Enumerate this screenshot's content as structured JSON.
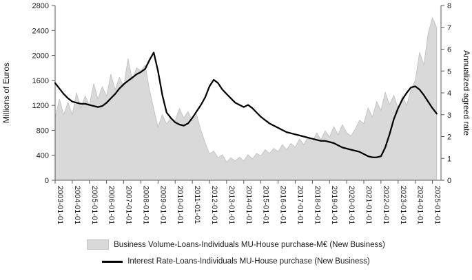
{
  "chart_data": {
    "type": "combo",
    "subtypes": [
      "area",
      "line"
    ],
    "title": "",
    "ylabel_left": "Millions of Euros",
    "ylabel_right": "Annualized agreed rate",
    "legend_position": "bottom",
    "grid": false,
    "x_axis": {
      "start": 2003,
      "step": 0.25,
      "min": 2003,
      "max": 2025.5,
      "tick_labels": [
        "2003-01-01",
        "2004-01-01",
        "2005-01-01",
        "2006-01-01",
        "2007-01-01",
        "2008-01-01",
        "2009-01-01",
        "2010-01-01",
        "2011-01-01",
        "2012-01-01",
        "2013-01-01",
        "2014-01-01",
        "2015-01-01",
        "2016-01-01",
        "2017-01-01",
        "2018-01-01",
        "2019-01-01",
        "2020-01-01",
        "2021-01-01",
        "2022-01-01",
        "2023-01-01",
        "2024-01-01",
        "2025-01-01"
      ]
    },
    "y_left": {
      "min": 0,
      "max": 2800,
      "ticks": [
        0,
        400,
        800,
        1200,
        1600,
        2000,
        2400,
        2800
      ]
    },
    "y_right": {
      "min": 0,
      "max": 8,
      "ticks": [
        0,
        1,
        2,
        3,
        4,
        5,
        6,
        7,
        8
      ]
    },
    "series": [
      {
        "name": "Business Volume-Loans-Individuals MU-House purchase-M€ (New Business)",
        "type": "area",
        "axis": "left",
        "color": "#d9d9d9",
        "edge_color": "#bdbdbd",
        "values": [
          1000,
          1300,
          1050,
          1250,
          1050,
          1400,
          1150,
          1350,
          1200,
          1550,
          1300,
          1500,
          1350,
          1700,
          1450,
          1650,
          1500,
          1950,
          1600,
          1800,
          1750,
          1850,
          1450,
          1150,
          850,
          1050,
          900,
          1000,
          950,
          1150,
          1000,
          1100,
          950,
          1050,
          800,
          600,
          420,
          470,
          360,
          410,
          290,
          360,
          310,
          370,
          310,
          410,
          340,
          430,
          390,
          490,
          430,
          510,
          460,
          570,
          490,
          590,
          530,
          660,
          570,
          690,
          610,
          760,
          650,
          790,
          690,
          860,
          730,
          890,
          760,
          710,
          820,
          960,
          910,
          1160,
          1010,
          1260,
          1120,
          1410,
          1210,
          1360,
          1150,
          1350,
          1200,
          1450,
          1600,
          2050,
          1850,
          2350,
          2600,
          2450
        ]
      },
      {
        "name": "Interest Rate-Loans-Individuals MU-House purchase (New Business)",
        "type": "line",
        "axis": "right",
        "color": "#000000",
        "values": [
          4.45,
          4.2,
          3.95,
          3.75,
          3.6,
          3.55,
          3.5,
          3.5,
          3.45,
          3.4,
          3.35,
          3.4,
          3.55,
          3.75,
          3.95,
          4.2,
          4.4,
          4.55,
          4.7,
          4.85,
          4.95,
          5.1,
          5.5,
          5.85,
          5.0,
          3.9,
          3.1,
          2.85,
          2.65,
          2.55,
          2.5,
          2.6,
          2.85,
          3.15,
          3.45,
          3.8,
          4.3,
          4.6,
          4.45,
          4.15,
          3.95,
          3.75,
          3.55,
          3.45,
          3.35,
          3.45,
          3.3,
          3.1,
          2.9,
          2.75,
          2.6,
          2.5,
          2.4,
          2.3,
          2.2,
          2.15,
          2.1,
          2.05,
          2.0,
          1.95,
          1.9,
          1.85,
          1.8,
          1.8,
          1.75,
          1.7,
          1.6,
          1.5,
          1.45,
          1.4,
          1.35,
          1.3,
          1.2,
          1.1,
          1.05,
          1.05,
          1.1,
          1.5,
          2.1,
          2.8,
          3.3,
          3.7,
          4.0,
          4.25,
          4.3,
          4.15,
          3.9,
          3.6,
          3.3,
          3.05
        ]
      }
    ]
  }
}
